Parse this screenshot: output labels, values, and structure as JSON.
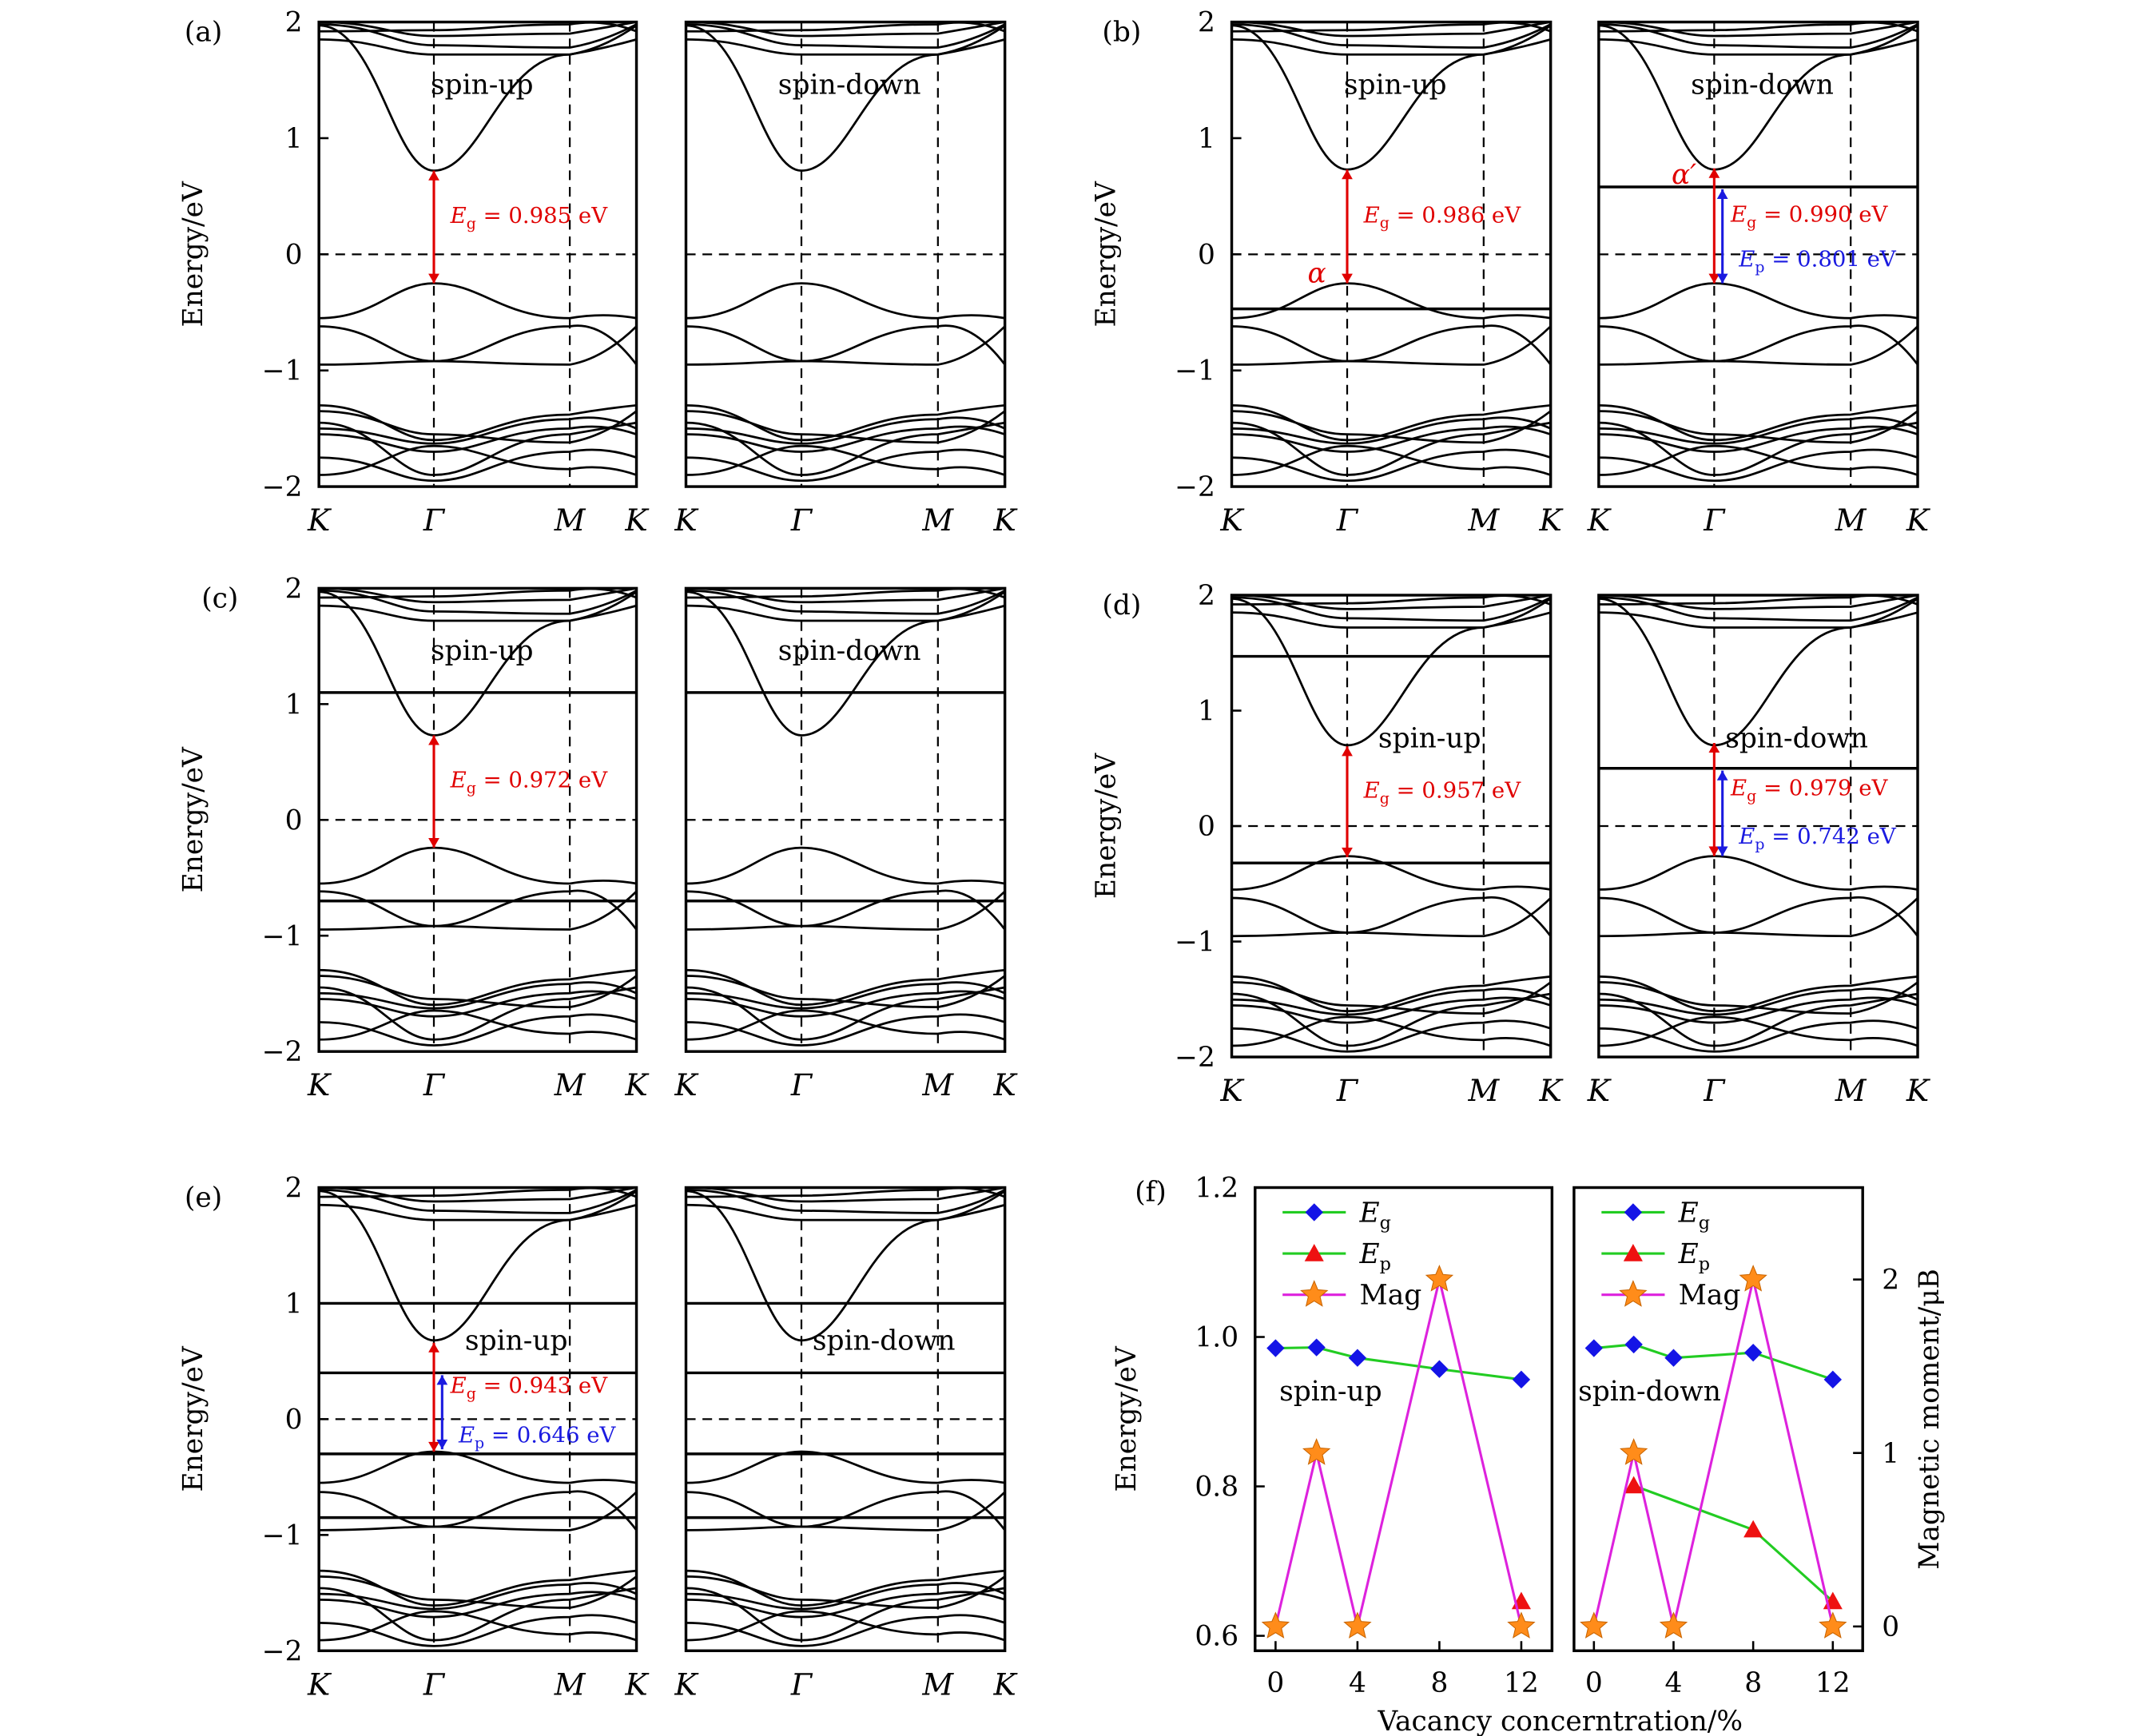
{
  "figure": {
    "source_size": [
      1556,
      1263
    ],
    "y_axis_label": "Energy/eV",
    "k_labels": [
      "K",
      "Γ",
      "M",
      "K"
    ],
    "energy_ticks": [
      "2",
      "1",
      "0",
      "−1",
      "−2"
    ],
    "energy_range": [
      -2,
      2
    ]
  },
  "chart_data": [
    {
      "type": "band_structure",
      "panel": "(a)",
      "left": {
        "label": "spin-up",
        "flat_bands": [],
        "annotations": [
          {
            "text": "0.985 eV",
            "symbol": "E_g",
            "sub": "g",
            "color": "#e00000",
            "from": -0.25,
            "to": 0.72
          }
        ]
      },
      "right": {
        "label": "spin-down",
        "flat_bands": [],
        "annotations": []
      },
      "cbm": 0.72,
      "vbm": -0.25
    },
    {
      "type": "band_structure",
      "panel": "(b)",
      "left": {
        "label": "spin-up",
        "flat_bands": [
          -0.47
        ],
        "markers": [
          {
            "text": "α",
            "color": "#e00000",
            "at": -0.17
          }
        ],
        "annotations": [
          {
            "text": "0.986 eV",
            "symbol": "E_g",
            "sub": "g",
            "color": "#e00000",
            "from": -0.25,
            "to": 0.73
          }
        ]
      },
      "right": {
        "label": "spin-down",
        "flat_bands": [
          0.58
        ],
        "markers": [
          {
            "text": "α′",
            "color": "#e00000",
            "at": 0.68
          }
        ],
        "annotations": [
          {
            "text": "0.990 eV",
            "symbol": "E_g",
            "sub": "g",
            "color": "#e00000",
            "from": -0.25,
            "to": 0.74
          },
          {
            "text": "0.801 eV",
            "symbol": "E_p",
            "sub": "p",
            "color": "#1a1ae0",
            "from": -0.25,
            "to": 0.56
          }
        ]
      },
      "cbm": 0.73,
      "vbm": -0.25
    },
    {
      "type": "band_structure",
      "panel": "(c)",
      "left": {
        "label": "spin-up",
        "flat_bands": [
          1.1,
          -0.7
        ],
        "annotations": [
          {
            "text": "0.972 eV",
            "symbol": "E_g",
            "sub": "g",
            "color": "#e00000",
            "from": -0.24,
            "to": 0.73
          }
        ]
      },
      "right": {
        "label": "spin-down",
        "flat_bands": [
          1.1,
          -0.7
        ],
        "annotations": []
      },
      "cbm": 0.73,
      "vbm": -0.24
    },
    {
      "type": "band_structure",
      "panel": "(d)",
      "left": {
        "label": "spin-up",
        "flat_bands": [
          1.47,
          -0.32
        ],
        "annotations": [
          {
            "text": "0.957 eV",
            "symbol": "E_g",
            "sub": "g",
            "color": "#e00000",
            "from": -0.27,
            "to": 0.69
          }
        ]
      },
      "right": {
        "label": "spin-down",
        "flat_bands": [
          0.5
        ],
        "annotations": [
          {
            "text": "0.979 eV",
            "symbol": "E_g",
            "sub": "g",
            "color": "#e00000",
            "from": -0.26,
            "to": 0.72
          },
          {
            "text": "0.742 eV",
            "symbol": "E_p",
            "sub": "p",
            "color": "#1a1ae0",
            "from": -0.26,
            "to": 0.48
          }
        ]
      },
      "cbm": 0.7,
      "vbm": -0.26
    },
    {
      "type": "band_structure",
      "panel": "(e)",
      "left": {
        "label": "spin-up",
        "flat_bands": [
          1.0,
          0.4,
          -0.3,
          -0.85
        ],
        "annotations": [
          {
            "text": "0.943 eV",
            "symbol": "E_g",
            "sub": "g",
            "color": "#e00000",
            "from": -0.28,
            "to": 0.66
          },
          {
            "text": "0.646 eV",
            "symbol": "E_p",
            "sub": "p",
            "color": "#1a1ae0",
            "from": -0.26,
            "to": 0.38
          }
        ]
      },
      "right": {
        "label": "spin-down",
        "flat_bands": [
          1.0,
          0.4,
          -0.3,
          -0.85
        ],
        "annotations": []
      },
      "cbm": 0.68,
      "vbm": -0.28
    },
    {
      "type": "line",
      "panel": "(f)",
      "x_label": "Vacancy concerntration/%",
      "y_label": "Energy/eV",
      "y2_label": "Magnetic moment/μB",
      "x_ticks": [
        "0",
        "4",
        "8",
        "12"
      ],
      "y_ticks": [
        "0.6",
        "0.8",
        "1.0",
        "1.2"
      ],
      "y2_ticks": [
        "0",
        "1",
        "2"
      ],
      "xlim": [
        -1,
        13.5
      ],
      "ylim": [
        0.58,
        1.2
      ],
      "y2lim": [
        -0.14,
        2.53
      ],
      "legend": [
        {
          "key": "eg",
          "label": "E",
          "sub": "g",
          "color": "#1414e6",
          "line": "#22cc22"
        },
        {
          "key": "ep",
          "label": "E",
          "sub": "p",
          "color": "#ee1111",
          "line": "#22cc22"
        },
        {
          "key": "mag",
          "label": "Mag",
          "sub": "",
          "color": "#ff8c1a",
          "line": "#dd22dd"
        }
      ],
      "subpanels": [
        {
          "label": "spin-up",
          "series": [
            {
              "name": "Eg",
              "x": [
                0,
                2,
                4,
                8,
                12
              ],
              "y": [
                0.985,
                0.986,
                0.972,
                0.957,
                0.943
              ]
            },
            {
              "name": "Ep",
              "x": [
                12
              ],
              "y": [
                0.646
              ]
            },
            {
              "name": "Mag",
              "x": [
                0,
                2,
                4,
                8,
                12
              ],
              "y": [
                0,
                1,
                0,
                2,
                0
              ]
            }
          ]
        },
        {
          "label": "spin-down",
          "series": [
            {
              "name": "Eg",
              "x": [
                0,
                2,
                4,
                8,
                12
              ],
              "y": [
                0.985,
                0.99,
                0.972,
                0.979,
                0.943
              ]
            },
            {
              "name": "Ep",
              "x": [
                2,
                8,
                12
              ],
              "y": [
                0.801,
                0.742,
                0.646
              ]
            },
            {
              "name": "Mag",
              "x": [
                0,
                2,
                4,
                8,
                12
              ],
              "y": [
                0,
                1,
                0,
                2,
                0
              ]
            }
          ]
        }
      ]
    }
  ]
}
